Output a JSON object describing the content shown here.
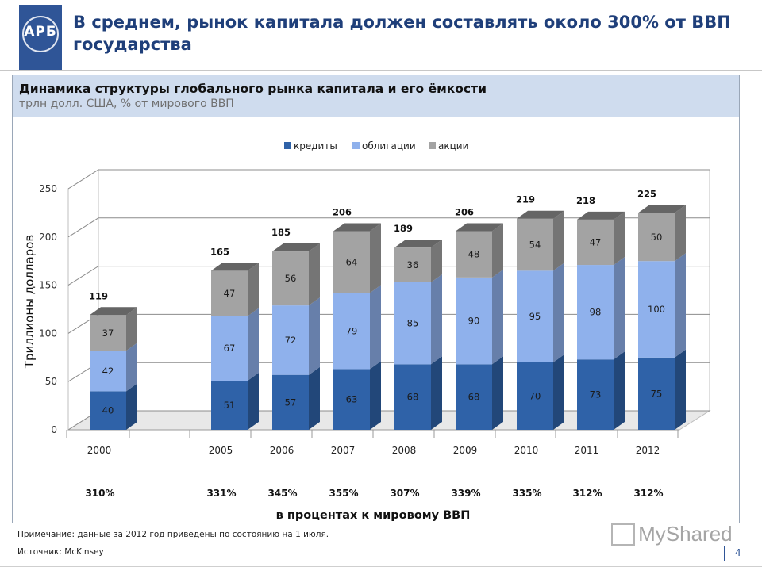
{
  "header": {
    "logo_text": "АРБ",
    "title": "В среднем, рынок капитала должен составлять около 300% от ВВП государства"
  },
  "panel": {
    "title": "Динамика структуры глобального рынка капитала и его ёмкости",
    "subtitle": "трлн долл. США, % от мирового ВВП"
  },
  "chart_data": {
    "type": "bar",
    "stacked": true,
    "style": "3d",
    "categories": [
      "2000",
      "2005",
      "2006",
      "2007",
      "2008",
      "2009",
      "2010",
      "2011",
      "2012"
    ],
    "series": [
      {
        "name": "кредиты",
        "color": "#2f62a8",
        "values": [
          40,
          51,
          57,
          63,
          68,
          68,
          70,
          73,
          75
        ]
      },
      {
        "name": "облигации",
        "color": "#8fb1ec",
        "values": [
          42,
          67,
          72,
          79,
          85,
          90,
          95,
          98,
          100
        ]
      },
      {
        "name": "акции",
        "color": "#a3a3a3",
        "values": [
          37,
          47,
          56,
          64,
          36,
          48,
          54,
          47,
          50
        ]
      }
    ],
    "totals": [
      119,
      165,
      185,
      206,
      189,
      206,
      219,
      218,
      225
    ],
    "gdp_percent": [
      "310%",
      "331%",
      "345%",
      "355%",
      "307%",
      "339%",
      "335%",
      "312%",
      "312%"
    ],
    "gdp_caption": "в процентах к мировому ВВП",
    "ylabel": "Триллионы долларов",
    "ylim": [
      0,
      250
    ],
    "yticks": [
      0,
      50,
      100,
      150,
      200,
      250
    ],
    "legend_position": "top-center",
    "grid": true
  },
  "footer": {
    "note": "Примечание: данные за 2012 год приведены по состоянию на 1 июля.",
    "source": "Источник: McKinsey",
    "page": "4",
    "watermark": "MyShared"
  }
}
